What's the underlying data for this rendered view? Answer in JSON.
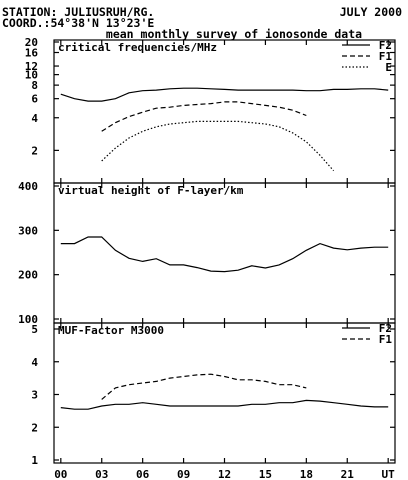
{
  "header": {
    "station": "STATION: JULIUSRUH/RG.",
    "date": "JULY 2000",
    "coord": "COORD.:54°38'N 13°23'E",
    "subtitle": "mean monthly survey of ionosonde data"
  },
  "colors": {
    "line": "#000000",
    "background": "#ffffff"
  },
  "chart_data": [
    {
      "type": "line",
      "title": "critical frequencies/MHz",
      "yscale": "log",
      "ylim": [
        1,
        20
      ],
      "yticks": [
        2,
        4,
        6,
        8,
        10,
        12,
        16,
        20
      ],
      "xlim": [
        -0.5,
        24.5
      ],
      "legend": "top-right",
      "series": [
        {
          "name": "F2",
          "style": "solid",
          "x": [
            0,
            1,
            2,
            3,
            4,
            5,
            6,
            7,
            8,
            9,
            10,
            11,
            12,
            13,
            14,
            15,
            16,
            17,
            18,
            19,
            20,
            21,
            22,
            23,
            24
          ],
          "y": [
            6.6,
            6.0,
            5.7,
            5.7,
            6.0,
            6.8,
            7.1,
            7.2,
            7.4,
            7.5,
            7.5,
            7.4,
            7.3,
            7.2,
            7.2,
            7.2,
            7.2,
            7.2,
            7.1,
            7.1,
            7.3,
            7.3,
            7.4,
            7.4,
            7.2
          ]
        },
        {
          "name": "F1",
          "style": "dashed",
          "x": [
            3,
            4,
            5,
            6,
            7,
            8,
            9,
            10,
            11,
            12,
            13,
            14,
            15,
            16,
            17,
            18
          ],
          "y": [
            3.0,
            3.6,
            4.1,
            4.5,
            4.9,
            5.0,
            5.2,
            5.3,
            5.4,
            5.6,
            5.6,
            5.4,
            5.2,
            5.0,
            4.7,
            4.2
          ]
        },
        {
          "name": "E",
          "style": "dotted",
          "x": [
            3,
            4,
            5,
            6,
            7,
            8,
            9,
            10,
            11,
            12,
            13,
            14,
            15,
            16,
            17,
            18,
            19,
            20
          ],
          "y": [
            1.6,
            2.1,
            2.6,
            3.0,
            3.3,
            3.5,
            3.6,
            3.7,
            3.7,
            3.7,
            3.7,
            3.6,
            3.5,
            3.3,
            2.9,
            2.4,
            1.8,
            1.3
          ]
        }
      ]
    },
    {
      "type": "line",
      "title": "virtual height of F-layer/km",
      "ylim": [
        100,
        400
      ],
      "yticks": [
        100,
        200,
        300,
        400
      ],
      "xlim": [
        -0.5,
        24.5
      ],
      "series": [
        {
          "style": "solid",
          "x": [
            0,
            1,
            2,
            3,
            4,
            5,
            6,
            7,
            8,
            9,
            10,
            11,
            12,
            13,
            14,
            15,
            16,
            17,
            18,
            19,
            20,
            21,
            22,
            23,
            24
          ],
          "y": [
            270,
            270,
            285,
            285,
            255,
            237,
            230,
            236,
            222,
            222,
            216,
            208,
            207,
            210,
            220,
            215,
            222,
            236,
            255,
            270,
            260,
            256,
            260,
            262,
            262
          ]
        }
      ]
    },
    {
      "type": "line",
      "title": "MUF-Factor M3000",
      "ylim": [
        1,
        5
      ],
      "yticks": [
        1,
        2,
        3,
        4,
        5
      ],
      "xlim": [
        -0.5,
        24.5
      ],
      "xticks": [
        "00",
        "03",
        "06",
        "09",
        "12",
        "15",
        "18",
        "21",
        "UT"
      ],
      "legend": "top-right",
      "series": [
        {
          "name": "F2",
          "style": "solid",
          "x": [
            0,
            1,
            2,
            3,
            4,
            5,
            6,
            7,
            8,
            9,
            10,
            11,
            12,
            13,
            14,
            15,
            16,
            17,
            18,
            19,
            20,
            21,
            22,
            23,
            24
          ],
          "y": [
            2.6,
            2.55,
            2.55,
            2.65,
            2.7,
            2.7,
            2.75,
            2.7,
            2.65,
            2.65,
            2.65,
            2.65,
            2.65,
            2.65,
            2.7,
            2.7,
            2.75,
            2.75,
            2.82,
            2.8,
            2.75,
            2.7,
            2.65,
            2.62,
            2.62
          ]
        },
        {
          "name": "F1",
          "style": "dashed",
          "x": [
            3,
            4,
            5,
            6,
            7,
            8,
            9,
            10,
            11,
            12,
            13,
            14,
            15,
            16,
            17,
            18
          ],
          "y": [
            2.85,
            3.2,
            3.3,
            3.35,
            3.4,
            3.5,
            3.55,
            3.6,
            3.62,
            3.55,
            3.45,
            3.45,
            3.4,
            3.3,
            3.3,
            3.2
          ]
        }
      ]
    }
  ]
}
